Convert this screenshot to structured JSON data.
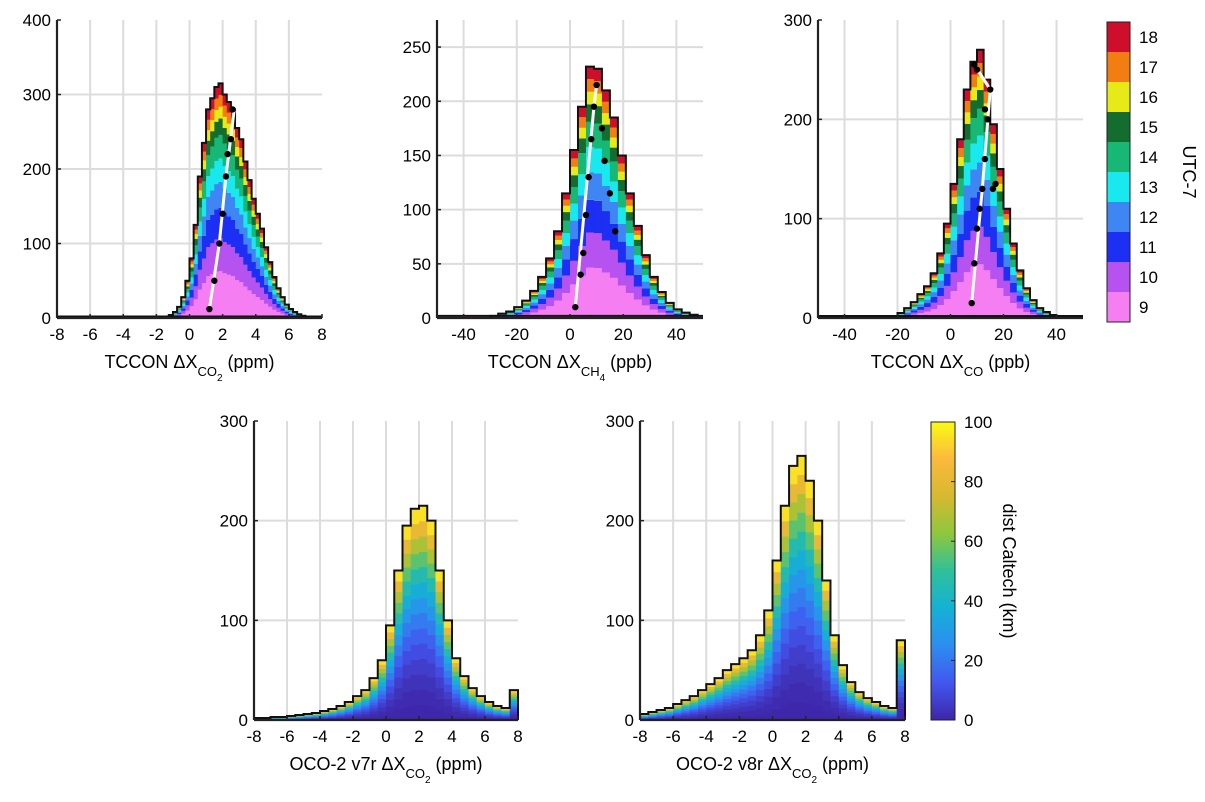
{
  "chart_data": [
    {
      "type": "bar",
      "id": "tccon-co2",
      "xlabel": {
        "prefix": "TCCON ",
        "species": "CO",
        "sub2": "2",
        "unit": " (ppm)"
      },
      "xlim": [
        -8,
        8
      ],
      "ylim": [
        0,
        400
      ],
      "xticks": [
        -8,
        -6,
        -4,
        -2,
        0,
        2,
        4,
        6,
        8
      ],
      "yticks": [
        0,
        100,
        200,
        300,
        400
      ],
      "grid": true,
      "bin_edges": [
        -1.25,
        -1.0,
        -0.75,
        -0.5,
        -0.25,
        0.0,
        0.25,
        0.5,
        0.75,
        1.0,
        1.25,
        1.5,
        1.75,
        2.0,
        2.25,
        2.5,
        2.75,
        3.0,
        3.25,
        3.5,
        3.75,
        4.0,
        4.25,
        4.5,
        4.75,
        5.0,
        5.25,
        5.5,
        5.75,
        6.0,
        6.25,
        6.5,
        6.75,
        7.0
      ],
      "totals": [
        4,
        8,
        15,
        28,
        50,
        80,
        125,
        190,
        235,
        280,
        295,
        310,
        315,
        300,
        290,
        280,
        255,
        240,
        210,
        185,
        160,
        140,
        120,
        95,
        75,
        55,
        40,
        28,
        18,
        12,
        8,
        5,
        3
      ],
      "baseline": 2,
      "dots": [
        [
          1.2,
          12
        ],
        [
          1.5,
          50
        ],
        [
          1.8,
          100
        ],
        [
          2.0,
          140
        ],
        [
          2.2,
          190
        ],
        [
          2.3,
          220
        ],
        [
          2.5,
          240
        ],
        [
          2.6,
          280
        ]
      ],
      "line_pts": [
        [
          1.2,
          12
        ],
        [
          1.8,
          100
        ],
        [
          2.2,
          190
        ],
        [
          2.7,
          280
        ]
      ]
    },
    {
      "type": "bar",
      "id": "tccon-ch4",
      "xlabel": {
        "prefix": "TCCON ",
        "species": "CH",
        "sub2": "4",
        "unit": " (ppb)"
      },
      "xlim": [
        -50,
        50
      ],
      "ylim": [
        0,
        275
      ],
      "xticks": [
        -40,
        -20,
        0,
        20,
        40
      ],
      "yticks": [
        0,
        50,
        100,
        150,
        200,
        250
      ],
      "grid": true,
      "bin_edges": [
        -30,
        -27,
        -24,
        -21,
        -18,
        -15,
        -12,
        -9,
        -6,
        -3,
        0,
        3,
        6,
        9,
        12,
        15,
        18,
        21,
        24,
        27,
        30,
        33,
        36,
        39,
        42,
        45,
        48
      ],
      "totals": [
        2,
        4,
        6,
        10,
        16,
        25,
        38,
        55,
        80,
        115,
        155,
        195,
        232,
        230,
        210,
        185,
        150,
        115,
        85,
        58,
        38,
        24,
        14,
        8,
        5,
        3
      ],
      "baseline": 2,
      "dots": [
        [
          2,
          10
        ],
        [
          4,
          40
        ],
        [
          5,
          60
        ],
        [
          6,
          95
        ],
        [
          7,
          130
        ],
        [
          8,
          165
        ],
        [
          9,
          195
        ],
        [
          10,
          215
        ],
        [
          12,
          175
        ],
        [
          13,
          145
        ],
        [
          15,
          115
        ],
        [
          17,
          80
        ]
      ],
      "line_pts": [
        [
          2,
          10
        ],
        [
          9,
          195
        ],
        [
          10,
          215
        ]
      ]
    },
    {
      "type": "bar",
      "id": "tccon-co",
      "xlabel": {
        "prefix": "TCCON ",
        "species": "CO",
        "sub2": "",
        "unit": " (ppb)"
      },
      "xlim": [
        -50,
        50
      ],
      "ylim": [
        0,
        300
      ],
      "xticks": [
        -40,
        -20,
        0,
        20,
        40
      ],
      "yticks": [
        0,
        100,
        200,
        300
      ],
      "grid": true,
      "bin_edges": [
        -20,
        -17.5,
        -15,
        -12.5,
        -10,
        -7.5,
        -5,
        -2.5,
        0,
        2.5,
        5,
        7.5,
        10,
        12.5,
        15,
        17.5,
        20,
        22.5,
        25,
        27.5,
        30,
        32.5,
        35,
        37.5,
        40
      ],
      "totals": [
        5,
        10,
        16,
        24,
        32,
        45,
        65,
        95,
        135,
        180,
        230,
        258,
        270,
        240,
        195,
        150,
        110,
        75,
        48,
        30,
        18,
        10,
        6,
        3
      ],
      "baseline": 2,
      "dots": [
        [
          8,
          15
        ],
        [
          9,
          55
        ],
        [
          10,
          90
        ],
        [
          11,
          110
        ],
        [
          12,
          130
        ],
        [
          13,
          160
        ],
        [
          14,
          200
        ],
        [
          15,
          230
        ],
        [
          16,
          130
        ],
        [
          17,
          135
        ],
        [
          9,
          255
        ],
        [
          10,
          250
        ],
        [
          13,
          210
        ]
      ],
      "line_pts": [
        [
          8,
          15
        ],
        [
          12,
          130
        ],
        [
          15,
          230
        ],
        [
          9,
          255
        ]
      ]
    },
    {
      "type": "bar",
      "id": "oco2-v7r",
      "xlabel": {
        "prefix": "OCO-2 v7r ",
        "species": "CO",
        "sub2": "2",
        "unit": " (ppm)"
      },
      "xlim": [
        -8,
        8
      ],
      "ylim": [
        0,
        300
      ],
      "xticks": [
        -8,
        -6,
        -4,
        -2,
        0,
        2,
        4,
        6,
        8
      ],
      "yticks": [
        0,
        100,
        200,
        300
      ],
      "grid": true,
      "bin_edges": [
        -8.0,
        -7.5,
        -7.0,
        -6.5,
        -6.0,
        -5.5,
        -5.0,
        -4.5,
        -4.0,
        -3.5,
        -3.0,
        -2.5,
        -2.0,
        -1.5,
        -1.0,
        -0.5,
        0.0,
        0.5,
        1.0,
        1.5,
        2.0,
        2.5,
        3.0,
        3.5,
        4.0,
        4.5,
        5.0,
        5.5,
        6.0,
        6.5,
        7.0,
        7.5,
        8.0
      ],
      "totals": [
        2,
        2,
        3,
        3,
        4,
        5,
        6,
        7,
        9,
        11,
        14,
        18,
        24,
        30,
        42,
        60,
        95,
        150,
        195,
        212,
        215,
        200,
        150,
        100,
        62,
        44,
        32,
        24,
        18,
        14,
        12,
        30
      ],
      "baseline": 0
    },
    {
      "type": "bar",
      "id": "oco2-v8r",
      "xlabel": {
        "prefix": "OCO-2 v8r ",
        "species": "CO",
        "sub2": "2",
        "unit": " (ppm)"
      },
      "xlim": [
        -8,
        8
      ],
      "ylim": [
        0,
        300
      ],
      "xticks": [
        -8,
        -6,
        -4,
        -2,
        0,
        2,
        4,
        6,
        8
      ],
      "yticks": [
        0,
        100,
        200,
        300
      ],
      "grid": true,
      "bin_edges": [
        -8.0,
        -7.5,
        -7.0,
        -6.5,
        -6.0,
        -5.5,
        -5.0,
        -4.5,
        -4.0,
        -3.5,
        -3.0,
        -2.5,
        -2.0,
        -1.5,
        -1.0,
        -0.5,
        0.0,
        0.5,
        1.0,
        1.5,
        2.0,
        2.5,
        3.0,
        3.5,
        4.0,
        4.5,
        5.0,
        5.5,
        6.0,
        6.5,
        7.0,
        7.5,
        8.0
      ],
      "totals": [
        6,
        8,
        10,
        12,
        16,
        20,
        24,
        30,
        36,
        42,
        50,
        56,
        62,
        70,
        85,
        110,
        160,
        215,
        255,
        265,
        240,
        200,
        140,
        85,
        55,
        38,
        28,
        22,
        18,
        14,
        12,
        80
      ],
      "baseline": 0
    }
  ],
  "colorbars": {
    "utc": {
      "label": "UTC-7",
      "levels": [
        "9",
        "10",
        "11",
        "12",
        "13",
        "14",
        "15",
        "16",
        "17",
        "18"
      ],
      "colors": [
        "#f47ef2",
        "#b652f0",
        "#1c2ff3",
        "#3e86f4",
        "#19e8ee",
        "#17b876",
        "#126d2f",
        "#e8ea17",
        "#f27e12",
        "#cf0e2c"
      ]
    },
    "dist": {
      "label": "dist Caltech (km)",
      "ticks": [
        0,
        20,
        40,
        60,
        80,
        100
      ],
      "range": [
        0,
        100
      ],
      "colors": [
        "#3e26a8",
        "#4257f0",
        "#2c8ef0",
        "#15b1d4",
        "#2fc09a",
        "#8dc73e",
        "#d6b930",
        "#fcb93c",
        "#f9fb15"
      ]
    }
  }
}
